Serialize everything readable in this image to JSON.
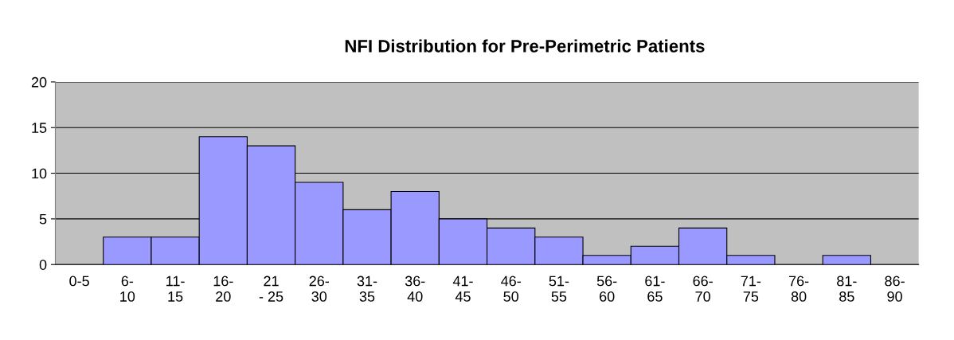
{
  "chart_data": {
    "type": "bar",
    "title": "NFI Distribution for Pre-Perimetric Patients",
    "categories": [
      "0-5",
      "6-\n10",
      "11-\n15",
      "16-\n20",
      "21\n- 25",
      "26-\n30",
      "31-\n35",
      "36-\n40",
      "41-\n45",
      "46-\n50",
      "51-\n55",
      "56-\n60",
      "61-\n65",
      "66-\n70",
      "71-\n75",
      "76-\n80",
      "81-\n85",
      "86-\n90"
    ],
    "values": [
      0,
      3,
      3,
      14,
      13,
      9,
      6,
      8,
      5,
      4,
      3,
      1,
      2,
      4,
      1,
      0,
      1,
      0
    ],
    "color": "#9999ff",
    "ylim": [
      0,
      20
    ],
    "yticks": [
      0,
      5,
      10,
      15,
      20
    ],
    "grid": "y"
  }
}
